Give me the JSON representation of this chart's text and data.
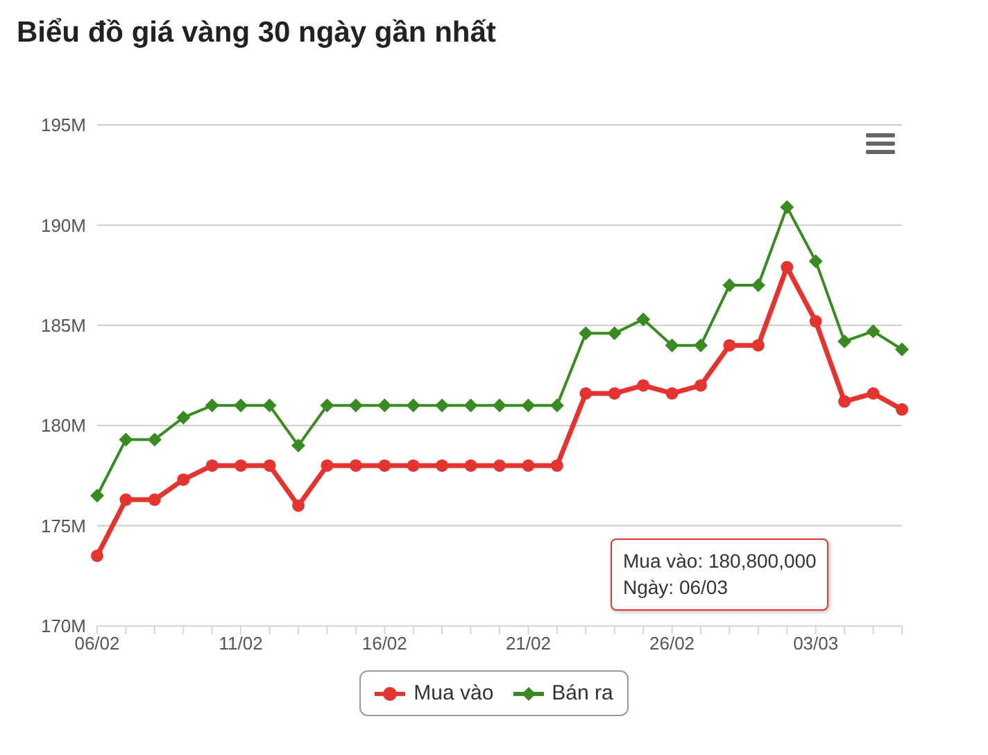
{
  "chart_data": {
    "type": "line",
    "title": "Biểu đồ giá vàng 30 ngày gần nhất",
    "categories": [
      "06/02",
      null,
      null,
      null,
      null,
      "11/02",
      null,
      null,
      null,
      null,
      "16/02",
      null,
      null,
      null,
      null,
      "21/02",
      null,
      null,
      null,
      null,
      "26/02",
      null,
      null,
      null,
      null,
      "03/03",
      null,
      null,
      null
    ],
    "series": [
      {
        "name": "Mua vào",
        "color": "#e3342f",
        "marker": "circle",
        "values": [
          173.5,
          176.3,
          176.3,
          177.3,
          178,
          178,
          178,
          176,
          178,
          178,
          178,
          178,
          178,
          178,
          178,
          178,
          178,
          181.6,
          181.6,
          182,
          181.6,
          182,
          184,
          184,
          187.9,
          185.2,
          181.2,
          181.6,
          180.8
        ]
      },
      {
        "name": "Bán ra",
        "color": "#3a8a22",
        "marker": "diamond",
        "values": [
          176.5,
          179.3,
          179.3,
          180.4,
          181,
          181,
          181,
          179,
          181,
          181,
          181,
          181,
          181,
          181,
          181,
          181,
          181,
          184.6,
          184.6,
          185.3,
          184,
          184,
          187,
          187,
          190.9,
          188.2,
          184.2,
          184.7,
          183.8
        ]
      }
    ],
    "ylim": [
      170,
      195
    ],
    "yticks": [
      {
        "value": 170,
        "label": "170M"
      },
      {
        "value": 175,
        "label": "175M"
      },
      {
        "value": 180,
        "label": "180M"
      },
      {
        "value": 185,
        "label": "185M"
      },
      {
        "value": 190,
        "label": "190M"
      },
      {
        "value": 195,
        "label": "195M"
      }
    ],
    "grid": "y",
    "legend": "bottom",
    "annotations": [
      "Mua vào: 180,800,000",
      "Ngày: 06/03"
    ]
  }
}
